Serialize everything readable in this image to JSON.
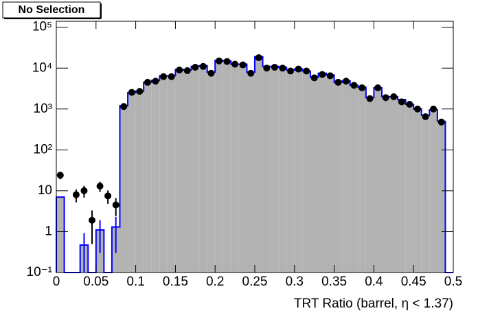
{
  "chart_data": {
    "type": "histogram",
    "title": "No Selection",
    "x_label": "TRT Ratio (barrel,  η < 1.37)",
    "bins": [
      0,
      0.01,
      0.02,
      0.03,
      0.04,
      0.05,
      0.06,
      0.07,
      0.08,
      0.09,
      0.1,
      0.11,
      0.12,
      0.13,
      0.14,
      0.15,
      0.16,
      0.17,
      0.18,
      0.19,
      0.2,
      0.21,
      0.22,
      0.23,
      0.24,
      0.25,
      0.26,
      0.27,
      0.28,
      0.29,
      0.3,
      0.31,
      0.32,
      0.33,
      0.34,
      0.35,
      0.36,
      0.37,
      0.38,
      0.39,
      0.4,
      0.41,
      0.42,
      0.43,
      0.44,
      0.45,
      0.46,
      0.47,
      0.48,
      0.49,
      0.5
    ],
    "xlim": [
      0,
      0.5
    ],
    "xticks": [
      0,
      0.05,
      0.1,
      0.15,
      0.2,
      0.25,
      0.3,
      0.35,
      0.4,
      0.45,
      0.5
    ],
    "ylim": [
      0.1,
      140000
    ],
    "log_y": true,
    "yticks": [
      {
        "value": 0.1,
        "label": "10⁻¹"
      },
      1,
      10,
      {
        "value": 100,
        "label": "10²"
      },
      {
        "value": 1000,
        "label": "10³"
      },
      {
        "value": 10000,
        "label": "10⁴"
      },
      {
        "value": 100000,
        "label": "10⁵"
      }
    ],
    "series": [
      {
        "style": "filled-step",
        "color": "#0000ff",
        "fill": "#b3b3b3",
        "values": [
          7,
          0,
          0,
          0.47,
          0,
          1.1,
          0,
          1.3,
          1200,
          2500,
          2750,
          4500,
          5000,
          6500,
          6500,
          9300,
          9000,
          11000,
          11500,
          8000,
          15500,
          15000,
          12500,
          12500,
          8000,
          19000,
          11000,
          11000,
          10500,
          9000,
          9500,
          8500,
          6000,
          7500,
          6800,
          4500,
          4900,
          3800,
          3400,
          1900,
          3300,
          2000,
          2000,
          1700,
          1300,
          1000,
          700,
          950,
          500,
          0
        ],
        "errors": [
          null,
          null,
          null,
          0.45,
          null,
          0.8,
          null,
          1.0,
          null,
          null,
          null,
          null,
          null,
          null,
          null,
          null,
          null,
          null,
          null,
          null,
          null,
          null,
          null,
          null,
          null,
          null,
          null,
          null,
          null,
          null,
          null,
          null,
          null,
          null,
          null,
          null,
          null,
          null,
          null,
          null,
          null,
          null,
          null,
          null,
          null,
          null,
          null,
          null,
          null,
          null
        ]
      },
      {
        "style": "points",
        "color": "#000000",
        "values": [
          24,
          null,
          8,
          10,
          1.9,
          13,
          7.5,
          4.5,
          1150,
          2550,
          2700,
          4500,
          4800,
          6200,
          6200,
          9000,
          8700,
          10500,
          11000,
          7500,
          15000,
          14500,
          12500,
          12000,
          7500,
          18000,
          10000,
          10500,
          10000,
          8500,
          9500,
          8500,
          5800,
          7000,
          6500,
          4500,
          4800,
          3800,
          3300,
          1800,
          3300,
          1900,
          2000,
          1500,
          1300,
          1000,
          650,
          1000,
          480,
          null
        ],
        "errors": [
          5,
          null,
          2.8,
          3.2,
          1.4,
          3.6,
          2.7,
          2.1,
          null,
          null,
          null,
          null,
          null,
          null,
          null,
          null,
          null,
          null,
          null,
          null,
          null,
          null,
          null,
          null,
          null,
          null,
          null,
          null,
          null,
          null,
          null,
          null,
          null,
          null,
          null,
          null,
          null,
          null,
          null,
          null,
          null,
          null,
          null,
          null,
          null,
          null,
          null,
          null,
          null,
          null
        ]
      }
    ]
  }
}
